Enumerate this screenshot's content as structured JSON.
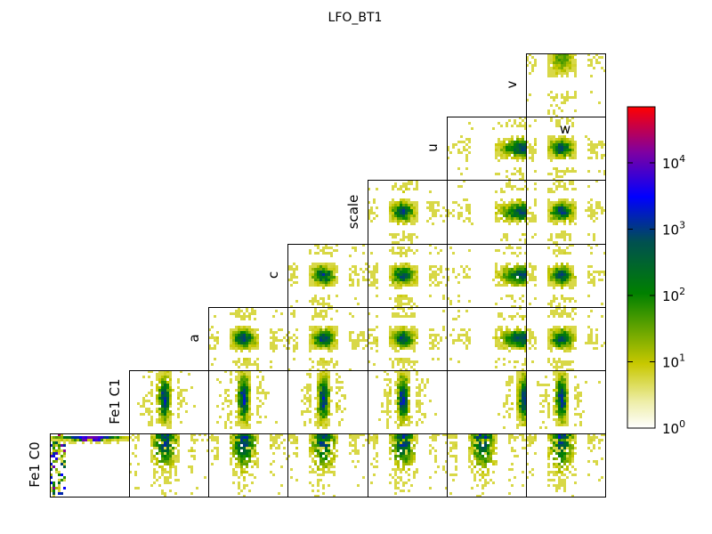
{
  "figure": {
    "title": "LFO_BT1"
  },
  "chart_data": {
    "type": "heatmap",
    "title": "LFO_BT1",
    "subtype": "corner-plot-2d-histograms",
    "color_scale": "log",
    "colorbar": {
      "range": [
        1,
        70000
      ],
      "ticks": [
        {
          "base": "10",
          "exp": "0",
          "value": 1
        },
        {
          "base": "10",
          "exp": "1",
          "value": 10
        },
        {
          "base": "10",
          "exp": "2",
          "value": 100
        },
        {
          "base": "10",
          "exp": "3",
          "value": 1000
        },
        {
          "base": "10",
          "exp": "4",
          "value": 10000
        }
      ],
      "colors": [
        "#ffffff",
        "#c8c800",
        "#008000",
        "#0000ff",
        "#ff0000"
      ]
    },
    "labels": [
      {
        "text": "Fe1 C0"
      },
      {
        "text": "Fe1 C1"
      },
      {
        "text": "a"
      },
      {
        "text": "c"
      },
      {
        "text": "scale"
      },
      {
        "text": "u"
      },
      {
        "text": "v"
      },
      {
        "text": "w"
      }
    ]
  }
}
